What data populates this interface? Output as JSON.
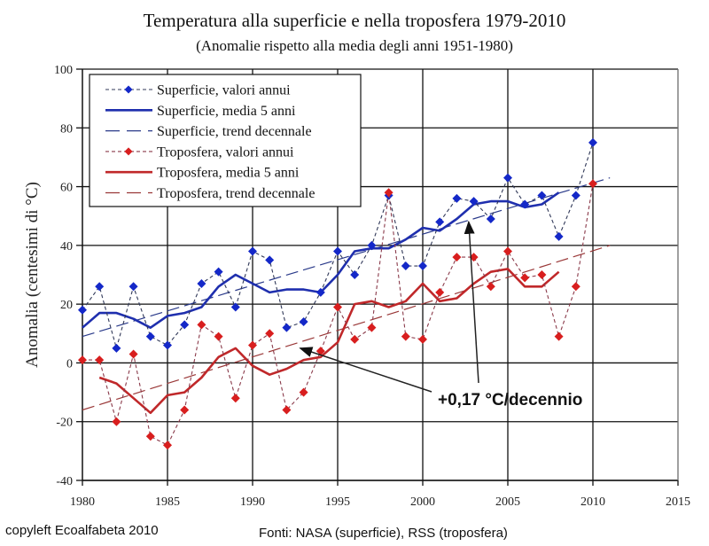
{
  "chart_data": {
    "type": "line",
    "title": "Temperatura alla superficie e nella troposfera 1979-2010",
    "subtitle": "(Anomalie rispetto alla media degli anni 1951-1980)",
    "xlabel": "",
    "ylabel": "Anomalia (centesimi di °C)",
    "xlim": [
      1980,
      2015
    ],
    "ylim": [
      -40,
      100
    ],
    "xticks": [
      1980,
      1985,
      1990,
      1995,
      2000,
      2005,
      2010,
      2015
    ],
    "yticks": [
      -40,
      -20,
      0,
      20,
      40,
      60,
      80,
      100
    ],
    "xtick_labels": [
      "1980",
      "1985",
      "1990",
      "1995",
      "2000",
      "2005",
      "2010",
      "2015"
    ],
    "ytick_labels": [
      "-40",
      "-20",
      "0",
      "20",
      "40",
      "60",
      "80",
      "100"
    ],
    "grid": true,
    "legend_position": "top-left",
    "colors": {
      "surface": "#1f2fae",
      "surface_marker": "#1428c8",
      "troposphere": "#c0282a",
      "troposphere_marker": "#d81e1e",
      "dotted_line": "#3a3a5a",
      "grid": "#111111",
      "annotation": "#222222"
    },
    "series": [
      {
        "name": "Superficie, valori annui",
        "style": "dotted-markers",
        "color_key": "surface",
        "x": [
          1980,
          1981,
          1982,
          1983,
          1984,
          1985,
          1986,
          1987,
          1988,
          1989,
          1990,
          1991,
          1992,
          1993,
          1994,
          1995,
          1996,
          1997,
          1998,
          1999,
          2000,
          2001,
          2002,
          2003,
          2004,
          2005,
          2006,
          2007,
          2008,
          2009,
          2010
        ],
        "values": [
          18,
          26,
          5,
          26,
          9,
          6,
          13,
          27,
          31,
          19,
          38,
          35,
          12,
          14,
          24,
          38,
          30,
          40,
          57,
          33,
          33,
          48,
          56,
          55,
          49,
          63,
          54,
          57,
          43,
          57,
          75
        ]
      },
      {
        "name": "Superficie, media 5 anni",
        "style": "solid",
        "color_key": "surface",
        "x": [
          1980,
          1981,
          1982,
          1983,
          1984,
          1985,
          1986,
          1987,
          1988,
          1989,
          1990,
          1991,
          1992,
          1993,
          1994,
          1995,
          1996,
          1997,
          1998,
          1999,
          2000,
          2001,
          2002,
          2003,
          2004,
          2005,
          2006,
          2007,
          2008
        ],
        "values": [
          12,
          17,
          17,
          15,
          12,
          16,
          17,
          19,
          26,
          30,
          27,
          24,
          25,
          25,
          24,
          30,
          38,
          39,
          39,
          42,
          46,
          45,
          49,
          54,
          55,
          55,
          53,
          54,
          58
        ]
      },
      {
        "name": "Superficie, trend decennale",
        "style": "dashed",
        "color_key": "surface",
        "x": [
          1980,
          2011
        ],
        "values": [
          9,
          63
        ]
      },
      {
        "name": "Troposfera, valori annui",
        "style": "dotted-markers",
        "color_key": "troposphere",
        "x": [
          1980,
          1981,
          1982,
          1983,
          1984,
          1985,
          1986,
          1987,
          1988,
          1989,
          1990,
          1991,
          1992,
          1993,
          1994,
          1995,
          1996,
          1997,
          1998,
          1999,
          2000,
          2001,
          2002,
          2003,
          2004,
          2005,
          2006,
          2007,
          2008,
          2009,
          2010
        ],
        "values": [
          1,
          1,
          -20,
          3,
          -25,
          -28,
          -16,
          13,
          9,
          -12,
          6,
          10,
          -16,
          -10,
          4,
          19,
          8,
          12,
          58,
          9,
          8,
          24,
          36,
          36,
          26,
          38,
          29,
          30,
          9,
          26,
          61
        ]
      },
      {
        "name": "Troposfera, media 5 anni",
        "style": "solid",
        "color_key": "troposphere",
        "x": [
          1981,
          1982,
          1983,
          1984,
          1985,
          1986,
          1987,
          1988,
          1989,
          1990,
          1991,
          1992,
          1993,
          1994,
          1995,
          1996,
          1997,
          1998,
          1999,
          2000,
          2001,
          2002,
          2003,
          2004,
          2005,
          2006,
          2007,
          2008
        ],
        "values": [
          -5,
          -7,
          -12,
          -17,
          -11,
          -10,
          -5,
          2,
          5,
          -1,
          -4,
          -2,
          1,
          2,
          7,
          20,
          21,
          19,
          21,
          27,
          21,
          22,
          27,
          31,
          32,
          26,
          26,
          31
        ]
      },
      {
        "name": "Troposfera, trend decennale",
        "style": "dashed",
        "color_key": "troposphere",
        "x": [
          1980,
          2011
        ],
        "values": [
          -16,
          40
        ]
      }
    ],
    "annotations": [
      {
        "text": "+0,17 °C/decennio",
        "points_to": [
          {
            "x": 1992.8,
            "y": 5,
            "target": "Troposfera, trend decennale"
          },
          {
            "x": 2002.7,
            "y": 48,
            "target": "Superficie, trend decennale"
          }
        ]
      }
    ]
  },
  "footer": {
    "left": "copyleft Ecoalfabeta 2010",
    "right": "Fonti: NASA (superficie), RSS (troposfera)"
  }
}
